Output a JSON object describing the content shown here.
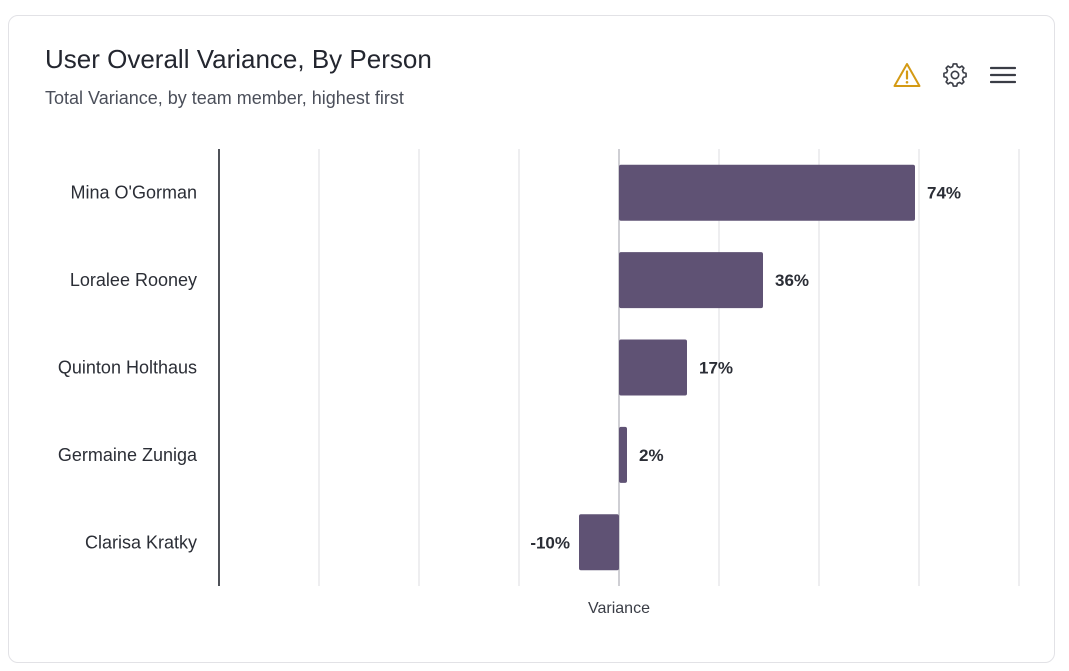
{
  "card": {
    "title": "User Overall Variance, By Person",
    "subtitle": "Total Variance, by team member, highest first"
  },
  "toolbar": {
    "warning_icon": "warning-icon",
    "settings_icon": "gear-icon",
    "menu_icon": "hamburger-menu-icon"
  },
  "colors": {
    "bar": "#5f5274",
    "grid": "#e2e2e6",
    "axis": "#23262f",
    "zero_line": "#cfcfd4",
    "label": "#2b2e36",
    "warning": "#d49a14"
  },
  "chart_data": {
    "type": "bar",
    "orientation": "horizontal",
    "title": "User Overall Variance, By Person",
    "subtitle": "Total Variance, by team member, highest first",
    "categories": [
      "Mina O'Gorman",
      "Loralee Rooney",
      "Quinton Holthaus",
      "Germaine Zuniga",
      "Clarisa Kratky"
    ],
    "values": [
      74,
      36,
      17,
      2,
      -10
    ],
    "value_labels": [
      "74%",
      "36%",
      "17%",
      "2%",
      "-10%"
    ],
    "xlabel": "Variance",
    "ylabel": "",
    "xlim": [
      -100,
      100
    ],
    "grid_step": 25,
    "grid": true,
    "legend": "none"
  }
}
